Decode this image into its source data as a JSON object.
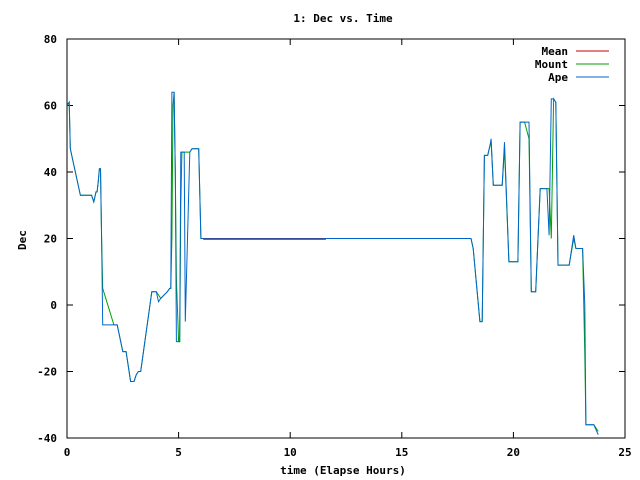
{
  "chart_data": {
    "type": "line",
    "title": "1: Dec vs. Time",
    "xlabel": "time (Elapse Hours)",
    "ylabel": "Dec",
    "xlim": [
      0,
      25
    ],
    "ylim": [
      -40,
      80
    ],
    "xticks": [
      "0",
      "5",
      "10",
      "15",
      "20",
      "25"
    ],
    "yticks": [
      "-40",
      "-20",
      "0",
      "20",
      "40",
      "60",
      "80"
    ],
    "grid": false,
    "legend_position": "top-right",
    "series": [
      {
        "name": "Mean",
        "color": "#cc0000",
        "x": [
          6.1,
          11.6
        ],
        "y": [
          19.8,
          19.8
        ]
      },
      {
        "name": "Mount",
        "color": "#00a000",
        "x": [
          0.0,
          0.1,
          0.15,
          0.6,
          1.1,
          1.2,
          1.3,
          1.35,
          1.4,
          1.45,
          1.5,
          1.55,
          1.6,
          2.1,
          2.25,
          2.5,
          2.6,
          2.65,
          2.85,
          3.0,
          3.1,
          3.2,
          3.3,
          3.8,
          3.8,
          3.9,
          4.0,
          4.1,
          4.2,
          4.5,
          4.6,
          4.65,
          4.7,
          4.75,
          4.8,
          4.85,
          4.9,
          5.0,
          5.05,
          5.1,
          5.15,
          5.2,
          5.25,
          5.3,
          5.5,
          5.6,
          5.7,
          5.9,
          6.0,
          6.1,
          18.0,
          18.1,
          18.2,
          18.5,
          18.6,
          18.7,
          18.85,
          18.95,
          19.0,
          19.1,
          19.5,
          19.6,
          19.8,
          20.2,
          20.3,
          20.4,
          20.5,
          20.7,
          20.8,
          20.9,
          21.0,
          21.1,
          21.2,
          21.4,
          21.5,
          21.6,
          21.7,
          21.8,
          21.9,
          22.0,
          22.1,
          22.2,
          22.3,
          22.5,
          22.7,
          22.8,
          22.9,
          23.1,
          23.2,
          23.25,
          23.3,
          23.35,
          23.4,
          23.5,
          23.6,
          23.8
        ],
        "y": [
          60,
          61,
          47,
          33,
          33,
          31,
          34,
          34,
          37,
          41,
          41,
          20,
          5,
          -6,
          -6,
          -14,
          -14,
          -14,
          -23,
          -23,
          -21,
          -20,
          -20,
          4,
          4,
          4,
          4,
          3,
          2,
          4,
          5,
          5,
          20,
          60,
          64,
          40,
          8,
          -11,
          -11,
          30,
          46,
          46,
          46,
          46,
          46,
          47,
          47,
          47,
          20,
          20,
          20,
          20,
          17,
          -5,
          -5,
          45,
          45,
          48,
          49,
          36,
          36,
          47,
          13,
          13,
          55,
          55,
          55,
          50,
          4,
          4,
          4,
          20,
          35,
          35,
          35,
          35,
          20,
          62,
          61,
          12,
          12,
          12,
          12,
          12,
          20,
          17,
          17,
          17,
          -15,
          -36,
          -36,
          -36,
          -36,
          -36,
          -36,
          -38
        ]
      },
      {
        "name": "Ape",
        "color": "#0066cc",
        "x": [
          0.0,
          0.1,
          0.15,
          0.6,
          1.1,
          1.2,
          1.3,
          1.35,
          1.4,
          1.45,
          1.5,
          1.55,
          1.6,
          2.1,
          2.25,
          2.5,
          2.6,
          2.65,
          2.85,
          3.0,
          3.1,
          3.2,
          3.3,
          3.8,
          3.8,
          3.9,
          4.0,
          4.1,
          4.2,
          4.5,
          4.6,
          4.65,
          4.7,
          4.75,
          4.8,
          4.85,
          4.9,
          5.0,
          5.05,
          5.1,
          5.15,
          5.2,
          5.25,
          5.3,
          5.5,
          5.6,
          5.7,
          5.9,
          6.0,
          6.1,
          18.0,
          18.1,
          18.2,
          18.5,
          18.6,
          18.7,
          18.85,
          18.95,
          19.0,
          19.1,
          19.5,
          19.6,
          19.8,
          20.2,
          20.3,
          20.4,
          20.5,
          20.7,
          20.8,
          20.9,
          21.0,
          21.1,
          21.2,
          21.4,
          21.5,
          21.6,
          21.7,
          21.8,
          21.9,
          22.0,
          22.1,
          22.2,
          22.3,
          22.5,
          22.7,
          22.8,
          22.9,
          23.1,
          23.2,
          23.25,
          23.3,
          23.35,
          23.4,
          23.5,
          23.6,
          23.8
        ],
        "y": [
          60,
          61,
          47,
          33,
          33,
          31,
          34,
          34,
          37,
          41,
          41,
          20,
          -6,
          -6,
          -6,
          -14,
          -14,
          -14,
          -23,
          -23,
          -21,
          -20,
          -20,
          4,
          4,
          4,
          4,
          1,
          2,
          4,
          5,
          5,
          64,
          64,
          64,
          40,
          -11,
          -11,
          -11,
          46,
          46,
          46,
          46,
          -5,
          46,
          47,
          47,
          47,
          20,
          20,
          20,
          20,
          17,
          -5,
          -5,
          45,
          45,
          48,
          50,
          36,
          36,
          49,
          13,
          13,
          55,
          55,
          55,
          55,
          4,
          4,
          4,
          20,
          35,
          35,
          35,
          21,
          62,
          62,
          61,
          12,
          12,
          12,
          12,
          12,
          21,
          17,
          17,
          17,
          0,
          -36,
          -36,
          -36,
          -36,
          -36,
          -36,
          -39
        ]
      }
    ]
  }
}
